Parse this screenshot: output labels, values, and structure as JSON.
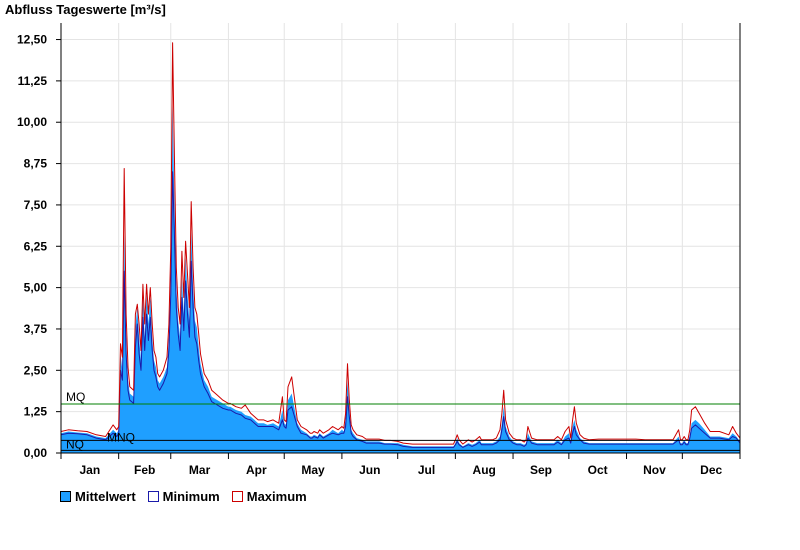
{
  "chart_data": {
    "type": "area",
    "title": "Abfluss Tageswerte [m³/s]",
    "xlabel": "",
    "ylabel": "",
    "ylim": [
      0,
      13
    ],
    "xlim": [
      1,
      366
    ],
    "y_ticks": [
      "0,00",
      "1,25",
      "2,50",
      "3,75",
      "5,00",
      "6,25",
      "7,50",
      "8,75",
      "10,00",
      "11,25",
      "12,50"
    ],
    "y_tick_values": [
      0,
      1.25,
      2.5,
      3.75,
      5,
      6.25,
      7.5,
      8.75,
      10,
      11.25,
      12.5
    ],
    "months": [
      "Jan",
      "Feb",
      "Mar",
      "Apr",
      "May",
      "Jun",
      "Jul",
      "Aug",
      "Sep",
      "Oct",
      "Nov",
      "Dec"
    ],
    "month_start_days": [
      1,
      32,
      60,
      91,
      121,
      152,
      182,
      213,
      244,
      274,
      305,
      335,
      366
    ],
    "grid": true,
    "legend_position": "bottom-left",
    "reference_lines": [
      {
        "label": "MQ",
        "value": 1.48,
        "color": "#007f00"
      },
      {
        "label": "MNQ",
        "value": 0.38,
        "color": "#000000"
      },
      {
        "label": "NQ",
        "value": 0.08,
        "color": "#000000"
      }
    ],
    "series": [
      {
        "name": "Mittelwert",
        "color": "#1f9fff",
        "kind": "area",
        "x": [
          1,
          5,
          10,
          15,
          20,
          25,
          29,
          31,
          32,
          33,
          34,
          35,
          36,
          37,
          38,
          40,
          41,
          42,
          43,
          44,
          45,
          46,
          47,
          48,
          49,
          50,
          51,
          52,
          53,
          54,
          56,
          58,
          59,
          60,
          61,
          62,
          63,
          64,
          65,
          66,
          67,
          68,
          69,
          70,
          71,
          72,
          73,
          74,
          75,
          76,
          78,
          80,
          82,
          85,
          88,
          91,
          92,
          95,
          98,
          100,
          103,
          105,
          106,
          107,
          108,
          110,
          112,
          115,
          118,
          120,
          121,
          122,
          123,
          125,
          128,
          130,
          133,
          135,
          136,
          137,
          139,
          140,
          142,
          145,
          147,
          150,
          152,
          153,
          154,
          155,
          156,
          157,
          158,
          160,
          163,
          165,
          168,
          172,
          175,
          178,
          182,
          185,
          190,
          195,
          200,
          205,
          210,
          212,
          213,
          214,
          215,
          217,
          220,
          222,
          224,
          226,
          227,
          230,
          233,
          235,
          237,
          238,
          239,
          240,
          242,
          244,
          246,
          248,
          250,
          251,
          252,
          254,
          257,
          260,
          263,
          266,
          268,
          270,
          272,
          274,
          275,
          276,
          277,
          278,
          280,
          282,
          285,
          290,
          295,
          300,
          305,
          310,
          315,
          320,
          325,
          330,
          333,
          334,
          335,
          336,
          337,
          338,
          339,
          340,
          342,
          344,
          347,
          350,
          355,
          360,
          362,
          364,
          366
        ],
        "y": [
          0.6,
          0.65,
          0.62,
          0.6,
          0.5,
          0.45,
          0.7,
          0.6,
          0.7,
          3.0,
          2.5,
          6.6,
          3.5,
          2.2,
          1.8,
          1.7,
          3.8,
          4.4,
          3.5,
          2.8,
          4.7,
          3.5,
          4.8,
          3.9,
          4.7,
          3.5,
          2.8,
          2.6,
          2.2,
          2.1,
          2.3,
          2.6,
          3.5,
          5.5,
          10.5,
          7.5,
          5.0,
          4.0,
          3.5,
          5.3,
          4.2,
          5.9,
          4.8,
          4.0,
          6.7,
          5.0,
          4.0,
          3.8,
          3.2,
          2.7,
          2.2,
          2.0,
          1.7,
          1.6,
          1.5,
          1.4,
          1.4,
          1.3,
          1.25,
          1.15,
          1.1,
          1.0,
          0.95,
          0.9,
          0.9,
          0.9,
          0.85,
          0.9,
          0.8,
          1.3,
          0.9,
          0.85,
          1.6,
          1.8,
          0.9,
          0.7,
          0.6,
          0.5,
          0.5,
          0.55,
          0.5,
          0.6,
          0.5,
          0.6,
          0.7,
          0.6,
          0.7,
          0.65,
          1.0,
          2.2,
          1.3,
          0.7,
          0.6,
          0.45,
          0.4,
          0.35,
          0.35,
          0.35,
          0.3,
          0.3,
          0.3,
          0.25,
          0.2,
          0.2,
          0.2,
          0.2,
          0.2,
          0.2,
          0.3,
          0.45,
          0.3,
          0.2,
          0.3,
          0.25,
          0.3,
          0.4,
          0.3,
          0.3,
          0.3,
          0.35,
          0.5,
          0.9,
          1.4,
          0.8,
          0.5,
          0.35,
          0.3,
          0.3,
          0.25,
          0.3,
          0.6,
          0.35,
          0.3,
          0.3,
          0.3,
          0.3,
          0.4,
          0.3,
          0.5,
          0.6,
          0.35,
          0.8,
          1.0,
          0.7,
          0.45,
          0.35,
          0.3,
          0.3,
          0.3,
          0.3,
          0.3,
          0.3,
          0.3,
          0.3,
          0.3,
          0.3,
          0.5,
          0.3,
          0.3,
          0.4,
          0.3,
          0.3,
          0.55,
          0.9,
          1.0,
          0.9,
          0.7,
          0.5,
          0.5,
          0.45,
          0.6,
          0.5,
          0.35
        ]
      },
      {
        "name": "Minimum",
        "color": "#1a1aaa",
        "kind": "line",
        "x": [
          1,
          5,
          10,
          15,
          20,
          25,
          29,
          31,
          32,
          33,
          34,
          35,
          36,
          37,
          38,
          40,
          41,
          42,
          43,
          44,
          45,
          46,
          47,
          48,
          49,
          50,
          51,
          52,
          53,
          54,
          56,
          58,
          59,
          60,
          61,
          62,
          63,
          64,
          65,
          66,
          67,
          68,
          69,
          70,
          71,
          72,
          73,
          74,
          75,
          76,
          78,
          80,
          82,
          85,
          88,
          91,
          92,
          95,
          98,
          100,
          103,
          105,
          106,
          107,
          108,
          110,
          112,
          115,
          118,
          120,
          121,
          122,
          123,
          125,
          128,
          130,
          133,
          135,
          136,
          137,
          139,
          140,
          142,
          145,
          147,
          150,
          152,
          153,
          154,
          155,
          156,
          157,
          158,
          160,
          163,
          165,
          168,
          172,
          175,
          178,
          182,
          185,
          190,
          195,
          200,
          205,
          210,
          212,
          213,
          214,
          215,
          217,
          220,
          222,
          224,
          226,
          227,
          230,
          233,
          235,
          237,
          238,
          239,
          240,
          242,
          244,
          246,
          248,
          250,
          251,
          252,
          254,
          257,
          260,
          263,
          266,
          268,
          270,
          272,
          274,
          275,
          276,
          277,
          278,
          280,
          282,
          285,
          290,
          295,
          300,
          305,
          310,
          315,
          320,
          325,
          330,
          333,
          334,
          335,
          336,
          337,
          338,
          339,
          340,
          342,
          344,
          347,
          350,
          355,
          360,
          362,
          364,
          366
        ],
        "y": [
          0.55,
          0.6,
          0.58,
          0.55,
          0.45,
          0.4,
          0.6,
          0.5,
          0.6,
          2.5,
          2.2,
          5.5,
          3.0,
          1.9,
          1.6,
          1.5,
          3.2,
          3.9,
          3.0,
          2.5,
          4.1,
          3.1,
          4.2,
          3.4,
          4.1,
          3.1,
          2.5,
          2.3,
          2.0,
          1.9,
          2.1,
          2.4,
          3.1,
          4.8,
          8.5,
          6.5,
          4.4,
          3.6,
          3.1,
          4.7,
          3.7,
          5.2,
          4.2,
          3.5,
          5.8,
          4.4,
          3.5,
          3.3,
          2.8,
          2.4,
          2.0,
          1.8,
          1.55,
          1.45,
          1.35,
          1.3,
          1.3,
          1.2,
          1.15,
          1.05,
          1.0,
          0.9,
          0.85,
          0.8,
          0.8,
          0.8,
          0.8,
          0.8,
          0.7,
          1.0,
          0.8,
          0.75,
          1.3,
          1.4,
          0.8,
          0.6,
          0.55,
          0.45,
          0.45,
          0.5,
          0.45,
          0.55,
          0.45,
          0.55,
          0.6,
          0.55,
          0.6,
          0.6,
          0.8,
          1.7,
          1.1,
          0.6,
          0.5,
          0.4,
          0.35,
          0.3,
          0.3,
          0.3,
          0.27,
          0.27,
          0.25,
          0.2,
          0.17,
          0.17,
          0.17,
          0.17,
          0.17,
          0.17,
          0.25,
          0.35,
          0.25,
          0.17,
          0.25,
          0.2,
          0.25,
          0.33,
          0.25,
          0.25,
          0.25,
          0.3,
          0.4,
          0.7,
          1.1,
          0.65,
          0.4,
          0.3,
          0.25,
          0.25,
          0.2,
          0.25,
          0.45,
          0.3,
          0.25,
          0.25,
          0.25,
          0.25,
          0.33,
          0.25,
          0.4,
          0.45,
          0.3,
          0.6,
          0.8,
          0.55,
          0.4,
          0.3,
          0.27,
          0.27,
          0.27,
          0.27,
          0.27,
          0.27,
          0.27,
          0.27,
          0.27,
          0.27,
          0.4,
          0.25,
          0.25,
          0.33,
          0.25,
          0.25,
          0.45,
          0.75,
          0.85,
          0.75,
          0.6,
          0.45,
          0.45,
          0.4,
          0.5,
          0.45,
          0.3
        ]
      },
      {
        "name": "Maximum",
        "color": "#cc0000",
        "kind": "line",
        "x": [
          1,
          5,
          10,
          15,
          20,
          25,
          29,
          31,
          32,
          33,
          34,
          35,
          36,
          37,
          38,
          40,
          41,
          42,
          43,
          44,
          45,
          46,
          47,
          48,
          49,
          50,
          51,
          52,
          53,
          54,
          56,
          58,
          59,
          60,
          61,
          62,
          63,
          64,
          65,
          66,
          67,
          68,
          69,
          70,
          71,
          72,
          73,
          74,
          75,
          76,
          78,
          80,
          82,
          85,
          88,
          91,
          92,
          95,
          98,
          100,
          103,
          105,
          106,
          107,
          108,
          110,
          112,
          115,
          118,
          120,
          121,
          122,
          123,
          125,
          128,
          130,
          133,
          135,
          136,
          137,
          139,
          140,
          142,
          145,
          147,
          150,
          152,
          153,
          154,
          155,
          156,
          157,
          158,
          160,
          163,
          165,
          168,
          172,
          175,
          178,
          182,
          185,
          190,
          195,
          200,
          205,
          210,
          212,
          213,
          214,
          215,
          217,
          220,
          222,
          224,
          226,
          227,
          230,
          233,
          235,
          237,
          238,
          239,
          240,
          242,
          244,
          246,
          248,
          250,
          251,
          252,
          254,
          257,
          260,
          263,
          266,
          268,
          270,
          272,
          274,
          275,
          276,
          277,
          278,
          280,
          282,
          285,
          290,
          295,
          300,
          305,
          310,
          315,
          320,
          325,
          330,
          333,
          334,
          335,
          336,
          337,
          338,
          339,
          340,
          342,
          344,
          347,
          350,
          355,
          360,
          362,
          364,
          366
        ],
        "y": [
          0.65,
          0.7,
          0.67,
          0.65,
          0.55,
          0.5,
          0.85,
          0.7,
          0.8,
          3.3,
          2.9,
          8.6,
          4.2,
          2.6,
          2.0,
          1.9,
          4.2,
          4.5,
          3.9,
          3.1,
          5.1,
          3.9,
          5.1,
          4.2,
          5.0,
          3.9,
          3.1,
          2.9,
          2.4,
          2.3,
          2.5,
          2.9,
          3.9,
          6.2,
          12.4,
          8.8,
          5.6,
          4.4,
          3.9,
          6.1,
          4.7,
          6.4,
          5.4,
          4.4,
          7.6,
          5.6,
          4.4,
          4.2,
          3.6,
          3.0,
          2.4,
          2.2,
          1.9,
          1.75,
          1.6,
          1.5,
          1.5,
          1.4,
          1.35,
          1.45,
          1.2,
          1.1,
          1.05,
          1.0,
          1.0,
          1.0,
          0.95,
          1.0,
          0.9,
          1.7,
          1.0,
          0.95,
          2.0,
          2.3,
          1.0,
          0.8,
          0.7,
          0.6,
          0.6,
          0.65,
          0.6,
          0.7,
          0.6,
          0.7,
          0.8,
          0.7,
          0.8,
          0.75,
          1.2,
          2.7,
          1.6,
          0.85,
          0.7,
          0.55,
          0.5,
          0.42,
          0.42,
          0.42,
          0.38,
          0.38,
          0.35,
          0.3,
          0.27,
          0.27,
          0.27,
          0.27,
          0.27,
          0.27,
          0.4,
          0.55,
          0.4,
          0.27,
          0.4,
          0.33,
          0.4,
          0.5,
          0.4,
          0.4,
          0.4,
          0.45,
          0.7,
          1.2,
          1.9,
          1.0,
          0.6,
          0.45,
          0.4,
          0.4,
          0.33,
          0.4,
          0.8,
          0.45,
          0.4,
          0.4,
          0.4,
          0.4,
          0.5,
          0.4,
          0.65,
          0.8,
          0.45,
          1.0,
          1.4,
          0.9,
          0.55,
          0.45,
          0.4,
          0.42,
          0.42,
          0.42,
          0.42,
          0.42,
          0.4,
          0.4,
          0.4,
          0.4,
          0.7,
          0.4,
          0.4,
          0.5,
          0.4,
          0.4,
          0.7,
          1.3,
          1.4,
          1.2,
          0.9,
          0.65,
          0.65,
          0.55,
          0.8,
          0.6,
          0.45
        ]
      }
    ]
  },
  "legend": [
    {
      "label": "Mittelwert",
      "fill": "#1f9fff",
      "border": "#000000"
    },
    {
      "label": "Minimum",
      "fill": "#ffffff",
      "border": "#1a1aaa"
    },
    {
      "label": "Maximum",
      "fill": "#ffffff",
      "border": "#cc0000"
    }
  ]
}
